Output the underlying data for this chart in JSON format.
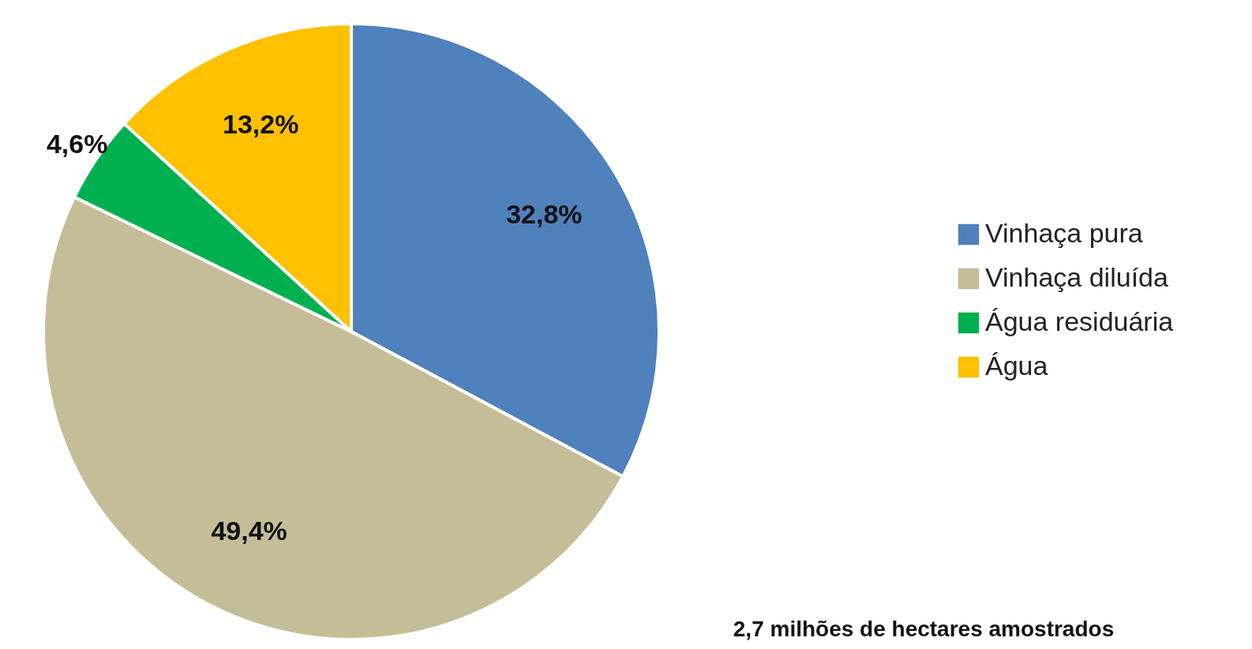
{
  "chart_data": {
    "type": "pie",
    "categories": [
      "Vinhaça pura",
      "Vinhaça diluída",
      "Água residuária",
      "Água"
    ],
    "values": [
      32.8,
      49.4,
      4.6,
      13.2
    ],
    "colors": [
      "#4f81bd",
      "#c4bd97",
      "#00b050",
      "#ffc000"
    ],
    "value_labels": [
      "32,8%",
      "49,4%",
      "4,6%",
      "13,2%"
    ],
    "legend": "right",
    "annotations": [
      "2,7 milhões de hectares amostrados"
    ]
  }
}
